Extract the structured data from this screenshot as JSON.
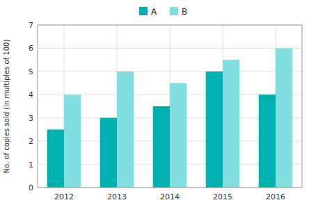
{
  "chart_data": {
    "type": "bar",
    "categories": [
      "2012",
      "2013",
      "2014",
      "2015",
      "2016"
    ],
    "series": [
      {
        "name": "A",
        "color": "#00b0b0",
        "values": [
          2.5,
          3.0,
          3.5,
          5.0,
          4.0
        ]
      },
      {
        "name": "B",
        "color": "#80dde0",
        "values": [
          4.0,
          5.0,
          4.5,
          5.5,
          6.0
        ]
      }
    ],
    "y_label": "No. of copies sold (in multiples of 100)",
    "ylim": [
      0,
      7
    ],
    "yticks": [
      0,
      1,
      2,
      3,
      4,
      5,
      6,
      7
    ],
    "grid": true,
    "legend": "top"
  }
}
